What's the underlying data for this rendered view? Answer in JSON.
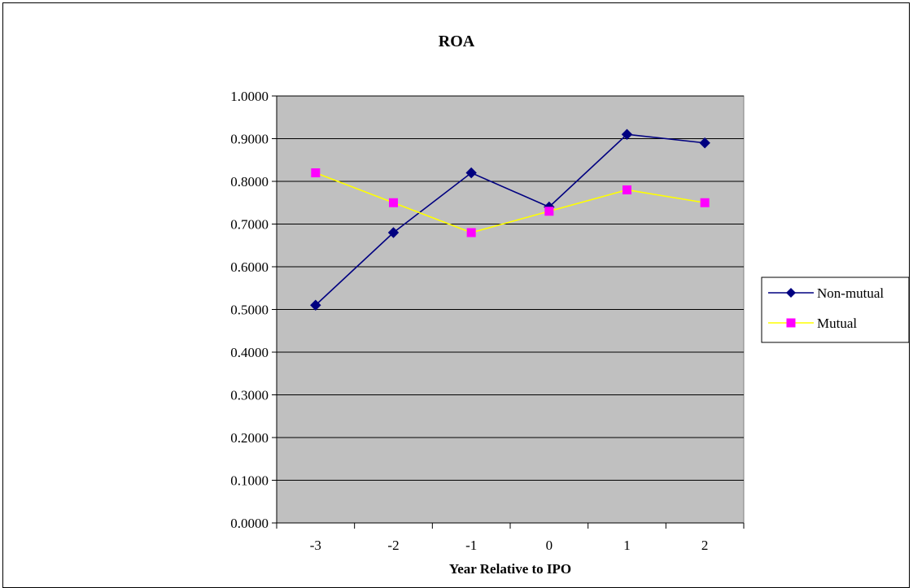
{
  "chart_data": {
    "type": "line",
    "title": "ROA",
    "xlabel": "Year Relative to IPO",
    "ylabel": "",
    "categories": [
      "-3",
      "-2",
      "-1",
      "0",
      "1",
      "2"
    ],
    "ylim": [
      0,
      1
    ],
    "yticks": [
      "0.0000",
      "0.1000",
      "0.2000",
      "0.3000",
      "0.4000",
      "0.5000",
      "0.6000",
      "0.7000",
      "0.8000",
      "0.9000",
      "1.0000"
    ],
    "grid": true,
    "legend_position": "right",
    "plot_background": "#c0c0c0",
    "series": [
      {
        "name": "Non-mutual",
        "color": "#000080",
        "marker": "diamond",
        "values": [
          0.51,
          0.68,
          0.82,
          0.74,
          0.91,
          0.89
        ]
      },
      {
        "name": "Mutual",
        "color": "#ffff00",
        "marker_color": "#ff00ff",
        "marker": "square",
        "values": [
          0.82,
          0.75,
          0.68,
          0.73,
          0.78,
          0.75
        ]
      }
    ]
  }
}
